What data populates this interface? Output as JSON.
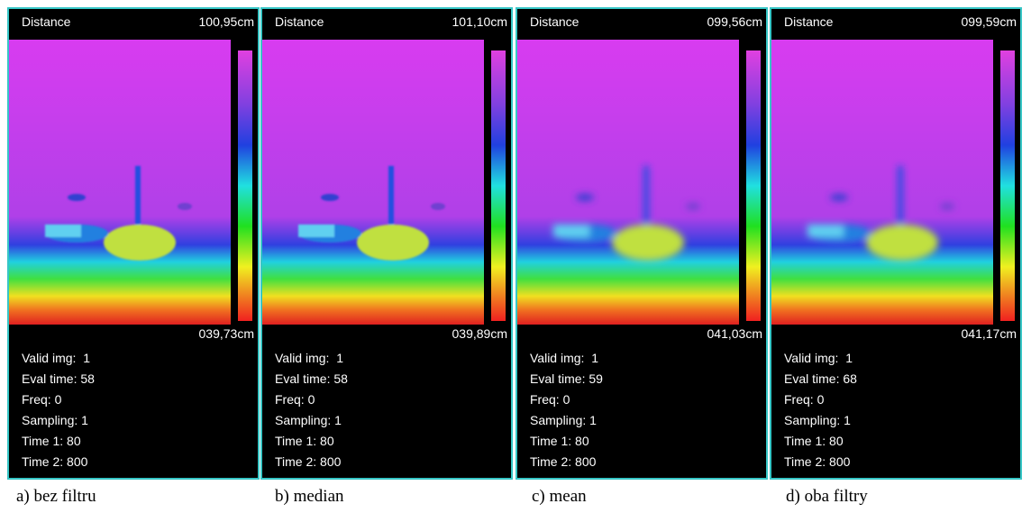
{
  "panels": [
    {
      "title": "Distance",
      "max": "100,95cm",
      "min": "039,73cm",
      "stats": [
        "Valid img:  1",
        "Eval time: 58",
        "Freq: 0",
        "Sampling: 1",
        "Time 1: 80",
        "Time 2: 800"
      ],
      "caption": "a) bez filtru"
    },
    {
      "title": "Distance",
      "max": "101,10cm",
      "min": "039,89cm",
      "stats": [
        "Valid img:  1",
        "Eval time: 58",
        "Freq: 0",
        "Sampling: 1",
        "Time 1: 80",
        "Time 2: 800"
      ],
      "caption": "b) median"
    },
    {
      "title": "Distance",
      "max": "099,56cm",
      "min": "041,03cm",
      "stats": [
        "Valid img:  1",
        "Eval time: 59",
        "Freq: 0",
        "Sampling: 1",
        "Time 1: 80",
        "Time 2: 800"
      ],
      "caption": "c) mean"
    },
    {
      "title": "Distance",
      "max": "099,59cm",
      "min": "041,17cm",
      "stats": [
        "Valid img:  1",
        "Eval time: 68",
        "Freq: 0",
        "Sampling: 1",
        "Time 1: 80",
        "Time 2: 800"
      ],
      "caption": "d) oba filtry"
    }
  ]
}
